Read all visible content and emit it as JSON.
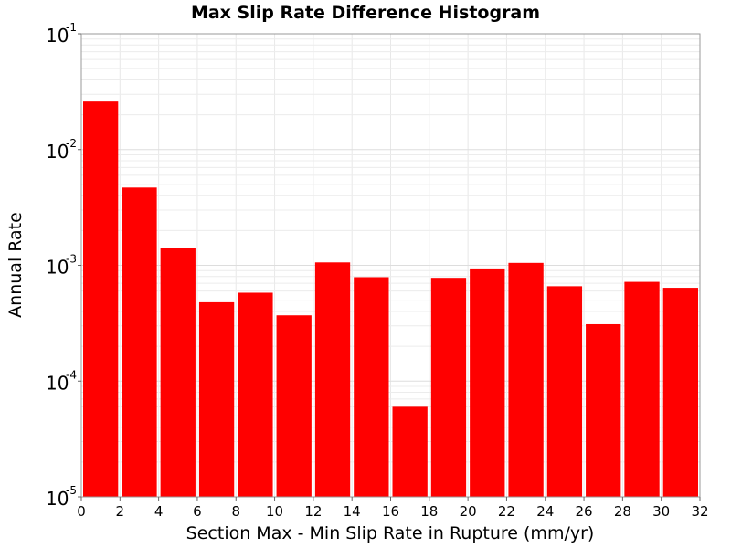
{
  "chart_data": {
    "type": "bar",
    "title": "Max Slip Rate Difference Histogram",
    "xlabel": "Section Max - Min Slip Rate in Rupture (mm/yr)",
    "ylabel": "Annual Rate",
    "xlim": [
      0,
      32
    ],
    "ylim": [
      1e-05,
      0.1
    ],
    "yscale": "log",
    "grid": true,
    "bar_color": "#ff0000",
    "bin_width": 2,
    "x_ticks": [
      "0",
      "2",
      "4",
      "6",
      "8",
      "10",
      "12",
      "14",
      "16",
      "18",
      "20",
      "22",
      "24",
      "26",
      "28",
      "30",
      "32"
    ],
    "y_ticks": [
      {
        "value": 1e-05,
        "base": "10",
        "exp": "-5"
      },
      {
        "value": 0.0001,
        "base": "10",
        "exp": "-4"
      },
      {
        "value": 0.001,
        "base": "10",
        "exp": "-3"
      },
      {
        "value": 0.01,
        "base": "10",
        "exp": "-2"
      },
      {
        "value": 0.1,
        "base": "10",
        "exp": "-1"
      }
    ],
    "bins": [
      {
        "x": 1,
        "value": 0.026
      },
      {
        "x": 3,
        "value": 0.0047
      },
      {
        "x": 5,
        "value": 0.0014
      },
      {
        "x": 7,
        "value": 0.00048
      },
      {
        "x": 9,
        "value": 0.00058
      },
      {
        "x": 11,
        "value": 0.00037
      },
      {
        "x": 13,
        "value": 0.00106
      },
      {
        "x": 15,
        "value": 0.00079
      },
      {
        "x": 17,
        "value": 6e-05
      },
      {
        "x": 19,
        "value": 0.00078
      },
      {
        "x": 21,
        "value": 0.00094
      },
      {
        "x": 23,
        "value": 0.00105
      },
      {
        "x": 25,
        "value": 0.00066
      },
      {
        "x": 27,
        "value": 0.00031
      },
      {
        "x": 29,
        "value": 0.00072
      },
      {
        "x": 31,
        "value": 0.00064
      }
    ]
  }
}
